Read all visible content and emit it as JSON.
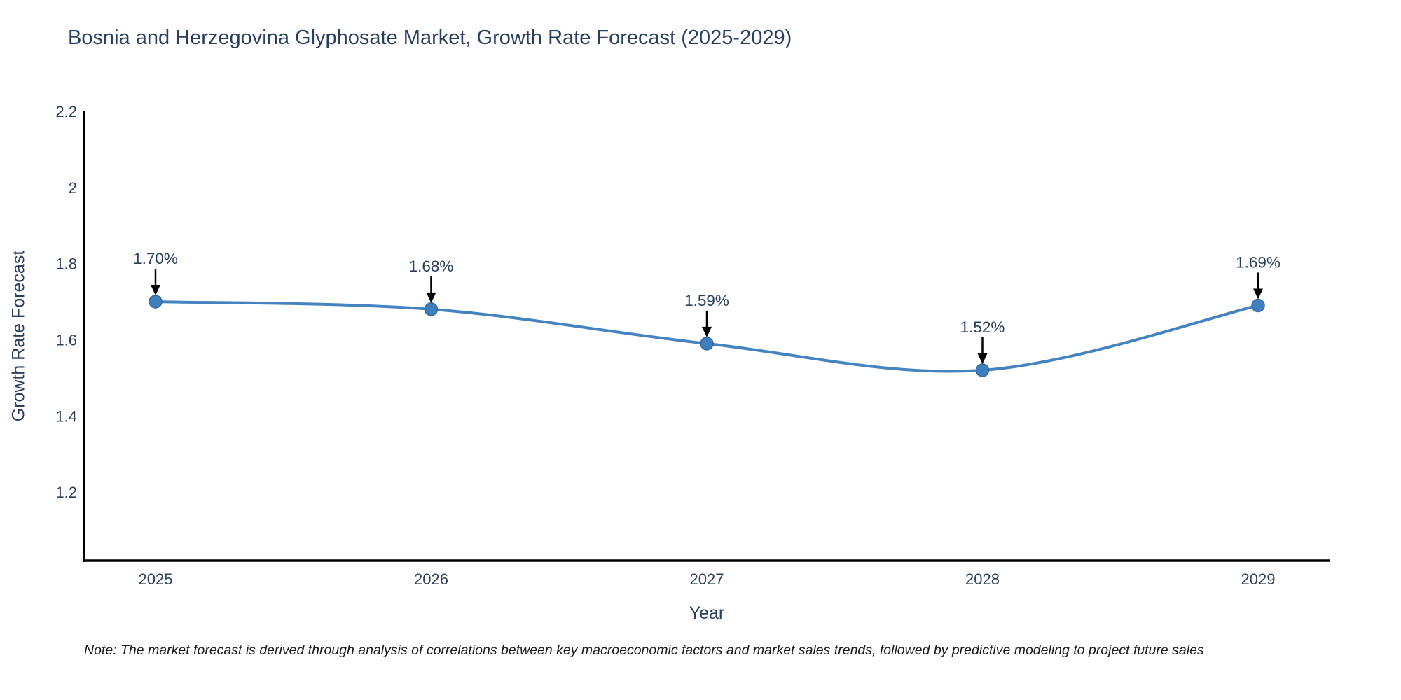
{
  "page": {
    "background": "#ffffff"
  },
  "chart_data": {
    "type": "line",
    "title": "Bosnia and Herzegovina Glyphosate Market, Growth Rate Forecast (2025-2029)",
    "xlabel": "Year",
    "ylabel": "Growth Rate Forecast",
    "categories": [
      "2025",
      "2026",
      "2027",
      "2028",
      "2029"
    ],
    "values": [
      1.7,
      1.68,
      1.59,
      1.52,
      1.69
    ],
    "point_labels": [
      "1.70%",
      "1.68%",
      "1.59%",
      "1.52%",
      "1.69%"
    ],
    "series_name": "Growth Rate Forecast",
    "ytick_labels": [
      "2.2",
      "2",
      "1.8",
      "1.6",
      "1.4",
      "1.2"
    ],
    "ytick_values": [
      2.2,
      2.0,
      1.8,
      1.6,
      1.4,
      1.2
    ],
    "ylim": [
      1.02,
      2.2
    ],
    "line_shape": "spline",
    "grid": false,
    "legend_position": "none",
    "colors": {
      "line": "#4483bf",
      "marker_fill": "#3f7fbe",
      "marker_edge": "#32689e",
      "title_text": "#2a3f5f",
      "tick_text": "#2f3f57",
      "annotation_text": "#2a3f5f",
      "axis_line": "#000000",
      "arrow": "#000000"
    },
    "note": "Note: The market forecast is derived through analysis of correlations between key macroeconomic factors and market sales trends, followed by predictive modeling to project future sales"
  }
}
